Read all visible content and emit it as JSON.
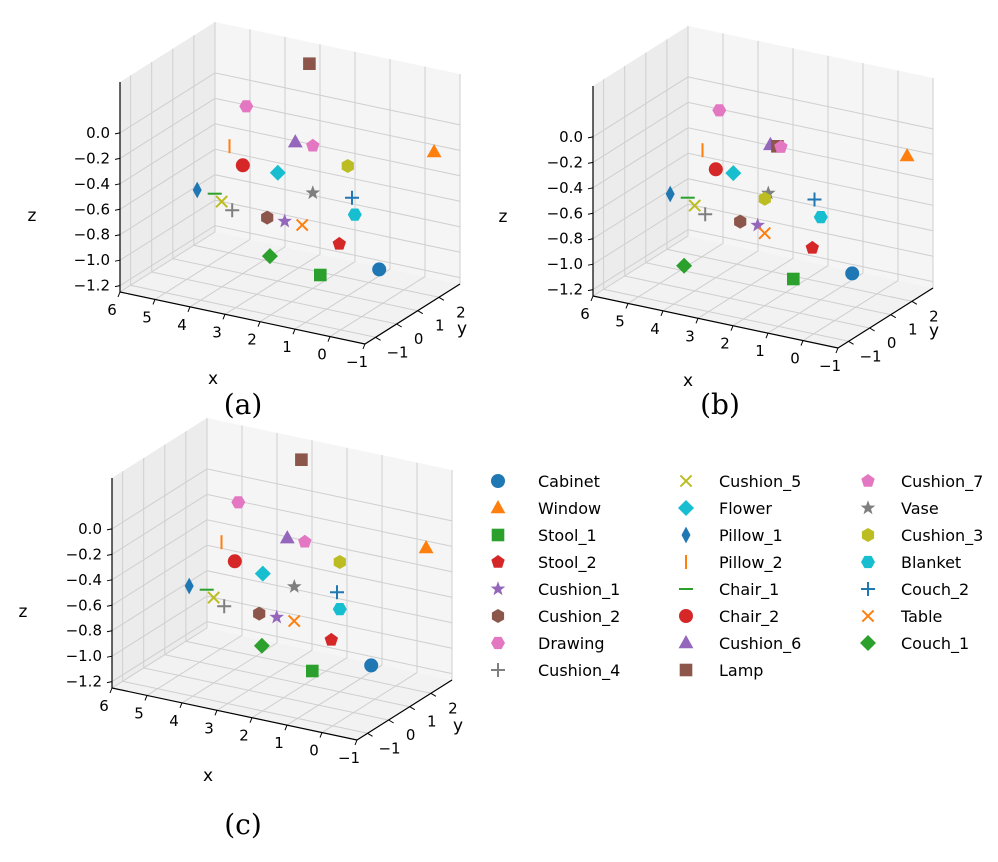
{
  "chart_data": [
    {
      "type": "scatter3d",
      "caption": "(a)",
      "xlabel": "x",
      "ylabel": "y",
      "zlabel": "z",
      "x_ticks": [
        "6",
        "5",
        "4",
        "3",
        "2",
        "1",
        "0",
        "−1"
      ],
      "y_ticks": [
        "−1",
        "0",
        "1",
        "2"
      ],
      "z_ticks": [
        "0.0",
        "−0.2",
        "−0.4",
        "−0.6",
        "−0.8",
        "−1.0",
        "−1.2"
      ],
      "points": [
        {
          "label": "Cabinet",
          "x": -0.5,
          "y": 0.0,
          "z": -0.85
        },
        {
          "label": "Window",
          "x": -0.5,
          "y": 2.6,
          "z": -0.2
        },
        {
          "label": "Stool_1",
          "x": 1.0,
          "y": -0.3,
          "z": -0.95
        },
        {
          "label": "Stool_2",
          "x": 1.0,
          "y": 0.6,
          "z": -0.8
        },
        {
          "label": "Cushion_1",
          "x": 2.5,
          "y": 0.5,
          "z": -0.7
        },
        {
          "label": "Cushion_2",
          "x": 3.0,
          "y": 0.5,
          "z": -0.7
        },
        {
          "label": "Drawing",
          "x": 4.2,
          "y": 1.5,
          "z": 0.0
        },
        {
          "label": "Cushion_4",
          "x": 4.0,
          "y": 0.5,
          "z": -0.7
        },
        {
          "label": "Cushion_5",
          "x": 4.3,
          "y": 0.5,
          "z": -0.65
        },
        {
          "label": "Flower",
          "x": 3.0,
          "y": 1.0,
          "z": -0.4
        },
        {
          "label": "Pillow_1",
          "x": 5.0,
          "y": 0.5,
          "z": -0.6
        },
        {
          "label": "Pillow_2",
          "x": 4.5,
          "y": 1.2,
          "z": -0.3
        },
        {
          "label": "Chair_1",
          "x": 4.5,
          "y": 0.5,
          "z": -0.6
        },
        {
          "label": "Chair_2",
          "x": 4.0,
          "y": 1.0,
          "z": -0.4
        },
        {
          "label": "Cushion_6",
          "x": 2.8,
          "y": 1.5,
          "z": -0.2
        },
        {
          "label": "Lamp",
          "x": 3.0,
          "y": 2.5,
          "z": 0.3
        },
        {
          "label": "Cushion_7",
          "x": 2.3,
          "y": 1.5,
          "z": -0.2
        },
        {
          "label": "Vase",
          "x": 2.0,
          "y": 1.0,
          "z": -0.5
        },
        {
          "label": "Cushion_3",
          "x": 1.3,
          "y": 1.5,
          "z": -0.3
        },
        {
          "label": "Blanket",
          "x": 0.8,
          "y": 1.0,
          "z": -0.6
        },
        {
          "label": "Couch_2",
          "x": 1.0,
          "y": 1.2,
          "z": -0.5
        },
        {
          "label": "Table",
          "x": 2.0,
          "y": 0.5,
          "z": -0.7
        },
        {
          "label": "Couch_1",
          "x": 2.5,
          "y": -0.2,
          "z": -0.9
        }
      ]
    },
    {
      "type": "scatter3d",
      "caption": "(b)",
      "xlabel": "x",
      "ylabel": "y",
      "zlabel": "z",
      "x_ticks": [
        "6",
        "5",
        "4",
        "3",
        "2",
        "1",
        "0",
        "−1"
      ],
      "y_ticks": [
        "−1",
        "0",
        "1",
        "2"
      ],
      "z_ticks": [
        "0.0",
        "−0.2",
        "−0.4",
        "−0.6",
        "−0.8",
        "−1.0",
        "−1.2"
      ],
      "points": [
        {
          "label": "Cabinet",
          "x": -0.5,
          "y": 0.0,
          "z": -0.85
        },
        {
          "label": "Window",
          "x": -0.5,
          "y": 2.6,
          "z": -0.2
        },
        {
          "label": "Stool_1",
          "x": 1.0,
          "y": -0.3,
          "z": -0.95
        },
        {
          "label": "Stool_2",
          "x": 1.0,
          "y": 0.6,
          "z": -0.8
        },
        {
          "label": "Cushion_1",
          "x": 2.5,
          "y": 0.5,
          "z": -0.7
        },
        {
          "label": "Cushion_2",
          "x": 3.0,
          "y": 0.5,
          "z": -0.7
        },
        {
          "label": "Drawing",
          "x": 4.2,
          "y": 1.5,
          "z": 0.0
        },
        {
          "label": "Cushion_4",
          "x": 4.0,
          "y": 0.5,
          "z": -0.7
        },
        {
          "label": "Cushion_5",
          "x": 4.3,
          "y": 0.5,
          "z": -0.65
        },
        {
          "label": "Flower",
          "x": 3.5,
          "y": 1.0,
          "z": -0.4
        },
        {
          "label": "Pillow_1",
          "x": 5.0,
          "y": 0.5,
          "z": -0.6
        },
        {
          "label": "Pillow_2",
          "x": 4.5,
          "y": 1.2,
          "z": -0.3
        },
        {
          "label": "Chair_1",
          "x": 4.5,
          "y": 0.5,
          "z": -0.6
        },
        {
          "label": "Chair_2",
          "x": 4.0,
          "y": 1.0,
          "z": -0.4
        },
        {
          "label": "Cushion_6",
          "x": 2.8,
          "y": 1.6,
          "z": -0.2
        },
        {
          "label": "Lamp",
          "x": 2.6,
          "y": 1.6,
          "z": -0.2
        },
        {
          "label": "Cushion_7",
          "x": 2.5,
          "y": 1.6,
          "z": -0.2
        },
        {
          "label": "Vase",
          "x": 2.5,
          "y": 1.0,
          "z": -0.5
        },
        {
          "label": "Cushion_3",
          "x": 2.6,
          "y": 1.0,
          "z": -0.55
        },
        {
          "label": "Blanket",
          "x": 1.0,
          "y": 1.0,
          "z": -0.6
        },
        {
          "label": "Couch_2",
          "x": 1.3,
          "y": 1.2,
          "z": -0.5
        },
        {
          "label": "Table",
          "x": 2.3,
          "y": 0.5,
          "z": -0.75
        },
        {
          "label": "Couch_1",
          "x": 4.0,
          "y": -0.5,
          "z": -1.0
        }
      ]
    },
    {
      "type": "scatter3d",
      "caption": "(c)",
      "xlabel": "x",
      "ylabel": "y",
      "zlabel": "z",
      "x_ticks": [
        "6",
        "5",
        "4",
        "3",
        "2",
        "1",
        "0",
        "−1"
      ],
      "y_ticks": [
        "−1",
        "0",
        "1",
        "2"
      ],
      "z_ticks": [
        "0.0",
        "−0.2",
        "−0.4",
        "−0.6",
        "−0.8",
        "−1.0",
        "−1.2"
      ],
      "points": [
        {
          "label": "Cabinet",
          "x": -0.5,
          "y": 0.0,
          "z": -0.85
        },
        {
          "label": "Window",
          "x": -0.5,
          "y": 2.6,
          "z": -0.2
        },
        {
          "label": "Stool_1",
          "x": 1.0,
          "y": -0.3,
          "z": -0.95
        },
        {
          "label": "Stool_2",
          "x": 1.0,
          "y": 0.6,
          "z": -0.8
        },
        {
          "label": "Cushion_1",
          "x": 2.5,
          "y": 0.5,
          "z": -0.7
        },
        {
          "label": "Cushion_2",
          "x": 3.0,
          "y": 0.5,
          "z": -0.7
        },
        {
          "label": "Drawing",
          "x": 4.2,
          "y": 1.5,
          "z": 0.0
        },
        {
          "label": "Cushion_4",
          "x": 4.0,
          "y": 0.5,
          "z": -0.7
        },
        {
          "label": "Cushion_5",
          "x": 4.3,
          "y": 0.5,
          "z": -0.65
        },
        {
          "label": "Flower",
          "x": 3.2,
          "y": 1.0,
          "z": -0.45
        },
        {
          "label": "Pillow_1",
          "x": 5.0,
          "y": 0.5,
          "z": -0.6
        },
        {
          "label": "Pillow_2",
          "x": 4.5,
          "y": 1.2,
          "z": -0.3
        },
        {
          "label": "Chair_1",
          "x": 4.5,
          "y": 0.5,
          "z": -0.6
        },
        {
          "label": "Chair_2",
          "x": 4.0,
          "y": 1.0,
          "z": -0.4
        },
        {
          "label": "Cushion_6",
          "x": 2.8,
          "y": 1.5,
          "z": -0.2
        },
        {
          "label": "Lamp",
          "x": 3.0,
          "y": 2.5,
          "z": 0.3
        },
        {
          "label": "Cushion_7",
          "x": 2.3,
          "y": 1.5,
          "z": -0.2
        },
        {
          "label": "Vase",
          "x": 2.3,
          "y": 1.0,
          "z": -0.5
        },
        {
          "label": "Cushion_3",
          "x": 1.3,
          "y": 1.5,
          "z": -0.3
        },
        {
          "label": "Blanket",
          "x": 1.0,
          "y": 1.0,
          "z": -0.6
        },
        {
          "label": "Couch_2",
          "x": 1.2,
          "y": 1.2,
          "z": -0.5
        },
        {
          "label": "Table",
          "x": 2.0,
          "y": 0.5,
          "z": -0.7
        },
        {
          "label": "Couch_1",
          "x": 2.5,
          "y": -0.2,
          "z": -0.85
        }
      ]
    }
  ],
  "legend": {
    "entries": [
      {
        "label": "Cabinet",
        "marker": "circle",
        "color": "#1f77b4"
      },
      {
        "label": "Window",
        "marker": "triangle",
        "color": "#ff7f0e"
      },
      {
        "label": "Stool_1",
        "marker": "square",
        "color": "#2ca02c"
      },
      {
        "label": "Stool_2",
        "marker": "pentagon",
        "color": "#d62728"
      },
      {
        "label": "Cushion_1",
        "marker": "star",
        "color": "#9467bd"
      },
      {
        "label": "Cushion_2",
        "marker": "hexagon",
        "color": "#8c564b"
      },
      {
        "label": "Drawing",
        "marker": "hexagon2",
        "color": "#e377c2"
      },
      {
        "label": "Cushion_4",
        "marker": "plus",
        "color": "#7f7f7f"
      },
      {
        "label": "Cushion_5",
        "marker": "x",
        "color": "#bcbd22"
      },
      {
        "label": "Flower",
        "marker": "diamond",
        "color": "#17becf"
      },
      {
        "label": "Pillow_1",
        "marker": "thin_diamond",
        "color": "#1f77b4"
      },
      {
        "label": "Pillow_2",
        "marker": "vline",
        "color": "#ff7f0e"
      },
      {
        "label": "Chair_1",
        "marker": "hline",
        "color": "#2ca02c"
      },
      {
        "label": "Chair_2",
        "marker": "circle",
        "color": "#d62728"
      },
      {
        "label": "Cushion_6",
        "marker": "triangle",
        "color": "#9467bd"
      },
      {
        "label": "Lamp",
        "marker": "square",
        "color": "#8c564b"
      },
      {
        "label": "Cushion_7",
        "marker": "pentagon",
        "color": "#e377c2"
      },
      {
        "label": "Vase",
        "marker": "star",
        "color": "#7f7f7f"
      },
      {
        "label": "Cushion_3",
        "marker": "hexagon",
        "color": "#bcbd22"
      },
      {
        "label": "Blanket",
        "marker": "hexagon2",
        "color": "#17becf"
      },
      {
        "label": "Couch_2",
        "marker": "plus",
        "color": "#1f77b4"
      },
      {
        "label": "Table",
        "marker": "x",
        "color": "#ff7f0e"
      },
      {
        "label": "Couch_1",
        "marker": "diamond",
        "color": "#2ca02c"
      }
    ]
  }
}
